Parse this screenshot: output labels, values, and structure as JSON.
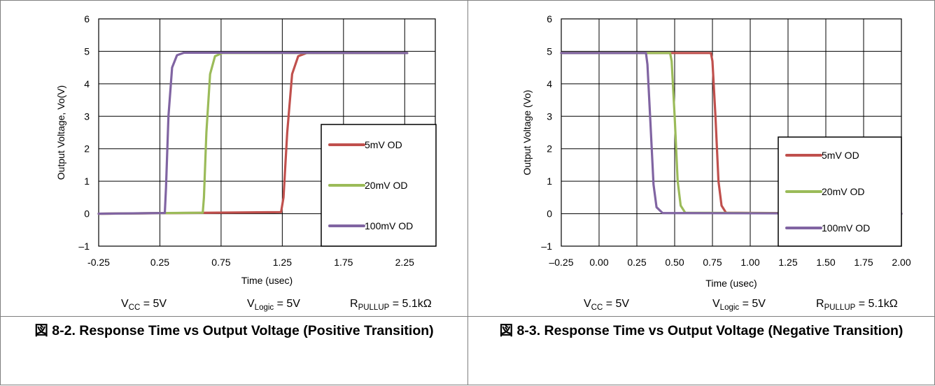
{
  "figures": [
    {
      "caption": "図 8-2. Response Time vs Output Voltage (Positive Transition)",
      "conditions": {
        "vcc_main": "V",
        "vcc_sub": "CC",
        "vcc_value": " = 5V",
        "vlogic_main": "V",
        "vlogic_sub": "Logic",
        "vlogic_value": " = 5V",
        "rpullup_main": "R",
        "rpullup_sub": "PULLUP",
        "rpullup_value": " = 5.1kΩ"
      },
      "chart_data": {
        "type": "line",
        "xlabel": "Time (usec)",
        "ylabel": "Output Voltage, Vo(V)",
        "xlim": [
          -0.25,
          2.5
        ],
        "ylim": [
          -1,
          6
        ],
        "xticks": [
          -0.25,
          0.25,
          0.75,
          1.25,
          1.75,
          2.25
        ],
        "xtick_labels": [
          "-0.25",
          "0.25",
          "0.75",
          "1.25",
          "1.75",
          "2.25"
        ],
        "yticks": [
          -1,
          0,
          1,
          2,
          3,
          4,
          5,
          6
        ],
        "ytick_labels": [
          "–1",
          "0",
          "1",
          "2",
          "3",
          "4",
          "5",
          "6"
        ],
        "grid": true,
        "legend_position": "bottom-right",
        "series": [
          {
            "name": "5mV OD",
            "color": "#c0504d",
            "x": [
              -0.25,
              1.24,
              1.26,
              1.29,
              1.33,
              1.38,
              1.45,
              2.27
            ],
            "y": [
              0,
              0.05,
              0.5,
              2.5,
              4.3,
              4.85,
              4.95,
              4.95
            ]
          },
          {
            "name": "20mV OD",
            "color": "#9bbb59",
            "x": [
              -0.25,
              0.6,
              0.61,
              0.63,
              0.66,
              0.7,
              0.76,
              2.27
            ],
            "y": [
              0,
              0.03,
              0.5,
              2.5,
              4.3,
              4.85,
              4.95,
              4.95
            ]
          },
          {
            "name": "100mV OD",
            "color": "#8064a2",
            "x": [
              -0.25,
              0.29,
              0.3,
              0.32,
              0.35,
              0.39,
              0.45,
              2.27
            ],
            "y": [
              0,
              0.02,
              0.8,
              3.0,
              4.5,
              4.88,
              4.96,
              4.95
            ]
          }
        ]
      }
    },
    {
      "caption": "図 8-3. Response Time vs Output Voltage (Negative Transition)",
      "conditions": {
        "vcc_main": "V",
        "vcc_sub": "CC",
        "vcc_value": " = 5V",
        "vlogic_main": "V",
        "vlogic_sub": "Logic",
        "vlogic_value": " = 5V",
        "rpullup_main": "R",
        "rpullup_sub": "PULLUP",
        "rpullup_value": " = 5.1kΩ"
      },
      "chart_data": {
        "type": "line",
        "xlabel": "Time (usec)",
        "ylabel": "Output Voltage (Vo)",
        "xlim": [
          -0.25,
          2.0
        ],
        "ylim": [
          -1,
          6
        ],
        "xticks": [
          -0.25,
          0.0,
          0.25,
          0.5,
          0.75,
          1.0,
          1.25,
          1.5,
          1.75,
          2.0
        ],
        "xtick_labels": [
          "–0.25",
          "0.00",
          "0.25",
          "0.50",
          "0.75",
          "1.00",
          "1.25",
          "1.50",
          "1.75",
          "2.00"
        ],
        "yticks": [
          -1,
          0,
          1,
          2,
          3,
          4,
          5,
          6
        ],
        "ytick_labels": [
          "–1",
          "0",
          "1",
          "2",
          "3",
          "4",
          "5",
          "6"
        ],
        "grid": true,
        "legend_position": "bottom-right",
        "series": [
          {
            "name": "5mV OD",
            "color": "#c0504d",
            "x": [
              -0.25,
              0.74,
              0.75,
              0.77,
              0.79,
              0.81,
              0.84,
              2.0
            ],
            "y": [
              4.95,
              4.95,
              4.7,
              3.0,
              1.0,
              0.25,
              0.03,
              0
            ]
          },
          {
            "name": "20mV OD",
            "color": "#9bbb59",
            "x": [
              -0.25,
              0.47,
              0.48,
              0.5,
              0.52,
              0.54,
              0.57,
              2.0
            ],
            "y": [
              4.95,
              4.95,
              4.7,
              3.0,
              1.0,
              0.25,
              0.03,
              0
            ]
          },
          {
            "name": "100mV OD",
            "color": "#8064a2",
            "x": [
              -0.25,
              0.31,
              0.32,
              0.34,
              0.36,
              0.38,
              0.42,
              2.0
            ],
            "y": [
              4.95,
              4.95,
              4.6,
              2.8,
              0.9,
              0.2,
              0.02,
              0
            ]
          }
        ]
      }
    }
  ]
}
